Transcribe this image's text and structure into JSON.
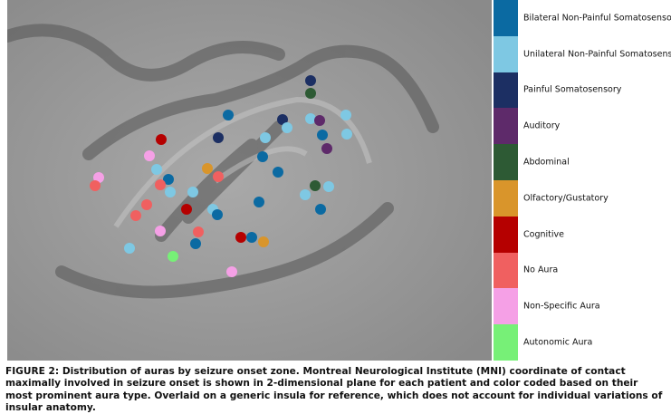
{
  "figure": {
    "legend": [
      {
        "label": "Bilateral Non-Painful Somatosensory",
        "color": "#0b6aa2"
      },
      {
        "label": "Unilateral Non-Painful Somatosensory",
        "color": "#7ec8e3"
      },
      {
        "label": "Painful Somatosensory",
        "color": "#1c2f63"
      },
      {
        "label": "Auditory",
        "color": "#5e2a6a"
      },
      {
        "label": "Abdominal",
        "color": "#2d5a34"
      },
      {
        "label": "Olfactory/Gustatory",
        "color": "#d9952b"
      },
      {
        "label": "Cognitive",
        "color": "#b50000"
      },
      {
        "label": "No Aura",
        "color": "#f06060"
      },
      {
        "label": "Non-Specific Aura",
        "color": "#f5a0e6"
      },
      {
        "label": "Autonomic Aura",
        "color": "#77f077"
      }
    ],
    "caption": "FIGURE 2: Distribution of auras by seizure onset zone. Montreal Neurological Institute (MNI) coordinate of contact maximally involved in seizure onset is shown in 2-dimensional plane for each patient and color coded based on their most prominent aura type. Overlaid on a generic insula for reference, which does not account for individual variations of insular anatomy."
  }
}
